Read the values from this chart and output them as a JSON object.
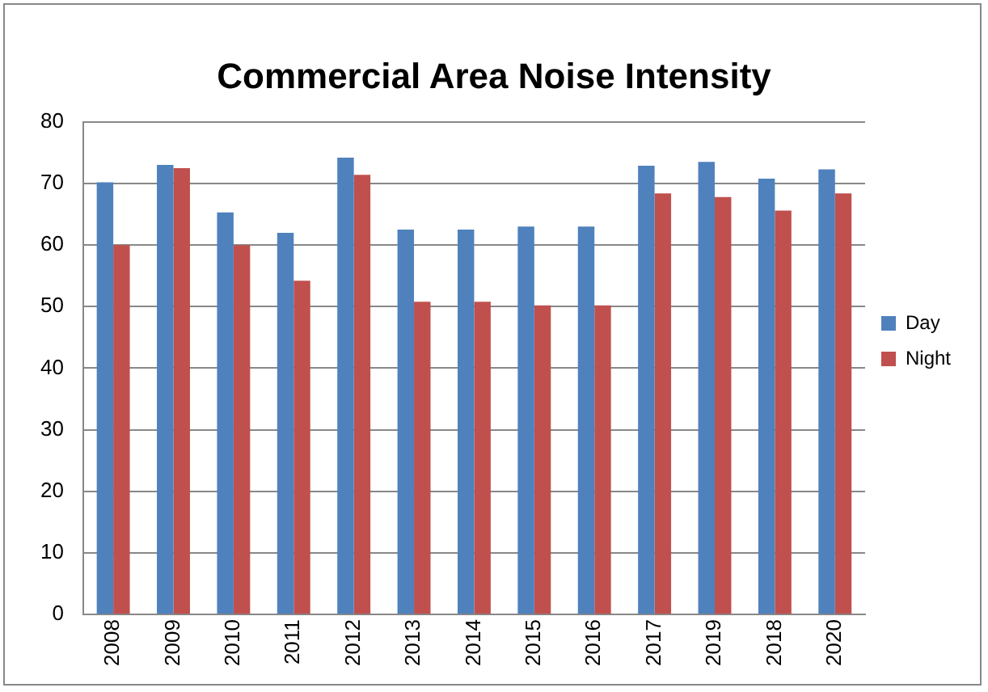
{
  "chart_data": {
    "type": "bar",
    "title": "Commercial Area Noise Intensity",
    "categories": [
      "2008",
      "2009",
      "2010",
      "2011",
      "2012",
      "2013",
      "2014",
      "2015",
      "2016",
      "2017",
      "2019",
      "2018",
      "2020"
    ],
    "series": [
      {
        "name": "Day",
        "color": "#4f81bd",
        "values": [
          70.2,
          73,
          65.3,
          62,
          74.2,
          62.5,
          62.5,
          63,
          63,
          72.9,
          73.5,
          70.8,
          72.3
        ]
      },
      {
        "name": "Night",
        "color": "#c0504d",
        "values": [
          60,
          72.5,
          60,
          54.2,
          71.4,
          50.8,
          50.8,
          50.2,
          50.2,
          68.4,
          67.8,
          65.6,
          68.4
        ]
      }
    ],
    "ylim": [
      0,
      80
    ],
    "yticks": [
      0,
      10,
      20,
      30,
      40,
      50,
      60,
      70,
      80
    ],
    "grid": "y",
    "legend": "right"
  }
}
